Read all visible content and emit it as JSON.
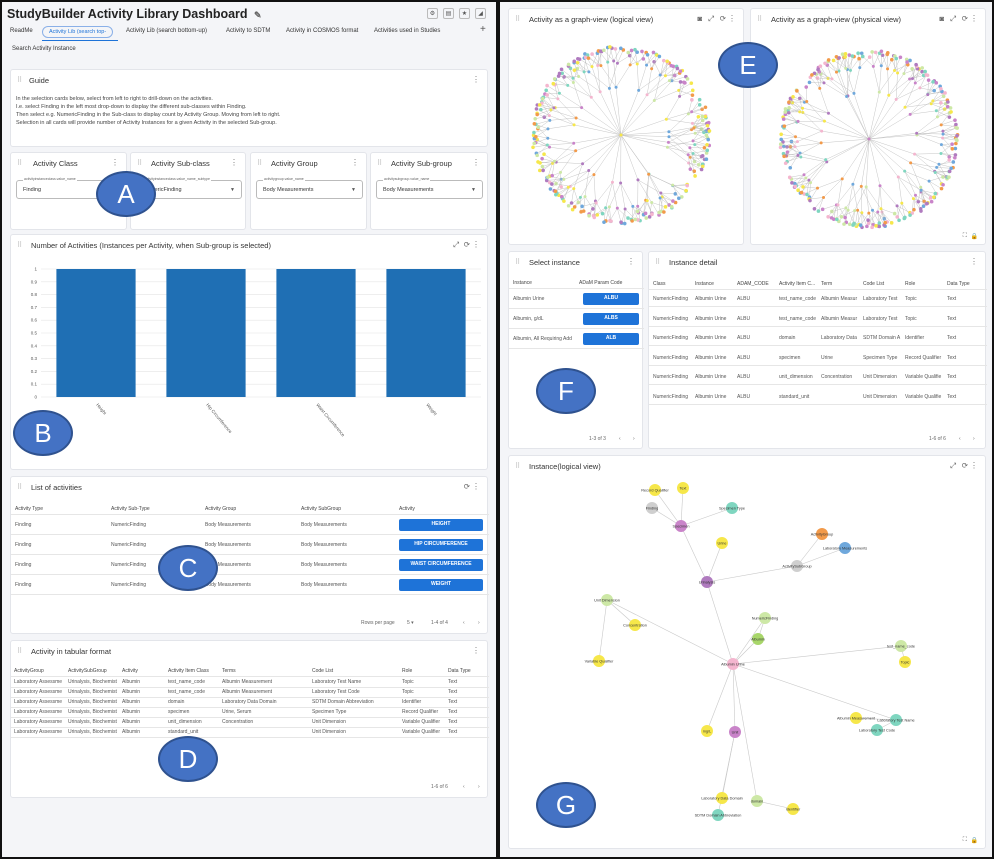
{
  "app": {
    "title": "StudyBuilder Activity Library Dashboard",
    "tabs": [
      "ReadMe",
      "Activity Lib (search top-",
      "Activity Lib (search bottom-up)",
      "Activity to SDTM",
      "Activity in COSMOS format",
      "Activities used in Studies"
    ],
    "tab2": "Search Activity Instance",
    "add_tab": "+"
  },
  "guide": {
    "title": "Guide",
    "lines": [
      "In the selection cards below, select from left to right to drill-down on the activities.",
      "I.e. select Finding in the left most drop-down to display the different sub-classes within Finding.",
      "Then select e.g. NumericFinding in the Sub-class to display count by Activity Group. Moving from left to right.",
      "Selection in all cards will provide number of Activity Instances for a given Activity in the selected Sub-group."
    ]
  },
  "filters": [
    {
      "title": "Activity Class",
      "field": "activityinstanceclass.value_name",
      "value": "Finding"
    },
    {
      "title": "Activity Sub-class",
      "field": "activityinstanceclass.value_name_subtype",
      "value": "NumericFinding"
    },
    {
      "title": "Activity Group",
      "field": "activitygroup.value_name",
      "value": "Body Measurements"
    },
    {
      "title": "Activity Sub-group",
      "field": "activitysubgroup.value_name",
      "value": "Body Measurements"
    }
  ],
  "bar_card": {
    "title": "Number of Activities (Instances per Activity, when Sub-group is selected)"
  },
  "chart_data": {
    "type": "bar",
    "categories": [
      "Height",
      "Hip Circumference",
      "Waist Circumference",
      "Weight"
    ],
    "values": [
      1,
      1,
      1,
      1
    ],
    "ylim": [
      0,
      1
    ],
    "yticks": [
      "0",
      "0.1",
      "0.2",
      "0.3",
      "0.4",
      "0.5",
      "0.6",
      "0.7",
      "0.8",
      "0.9",
      "1"
    ],
    "color": "#1f6fb4",
    "grid": true
  },
  "list_card": {
    "title": "List of activities",
    "headers": [
      "Activity Type",
      "Activity Sub-Type",
      "Activity Group",
      "Activity SubGroup",
      "Activity"
    ],
    "rows": [
      [
        "Finding",
        "NumericFinding",
        "Body Measurements",
        "Body Measurements",
        "HEIGHT"
      ],
      [
        "Finding",
        "NumericFinding",
        "Body Measurements",
        "Body Measurements",
        "HIP CIRCUMFERENCE"
      ],
      [
        "Finding",
        "NumericFinding",
        "Body Measurements",
        "Body Measurements",
        "WAIST CIRCUMFERENCE"
      ],
      [
        "Finding",
        "NumericFinding",
        "Body Measurements",
        "Body Measurements",
        "WEIGHT"
      ]
    ],
    "rows_per_page_label": "Rows per page",
    "rows_per_page": "5",
    "range": "1-4 of 4"
  },
  "tabular_card": {
    "title": "Activity in tabular format",
    "headers": [
      "ActivityGroup",
      "ActivitySubGroup",
      "Activity",
      "Activity Item Class",
      "Terms",
      "Code List",
      "Role",
      "Data Type"
    ],
    "rows": [
      [
        "Laboratory Assessme",
        "Urinalysis, Biochemist",
        "Albumin",
        "test_name_code",
        "Albumin Measurement",
        "Laboratory Test Name",
        "Topic",
        "Text"
      ],
      [
        "Laboratory Assessme",
        "Urinalysis, Biochemist",
        "Albumin",
        "test_name_code",
        "Albumin Measurement",
        "Laboratory Test Code",
        "Topic",
        "Text"
      ],
      [
        "Laboratory Assessme",
        "Urinalysis, Biochemist",
        "Albumin",
        "domain",
        "Laboratory Data Domain",
        "SDTM Domain Abbreviation",
        "Identifier",
        "Text"
      ],
      [
        "Laboratory Assessme",
        "Urinalysis, Biochemist",
        "Albumin",
        "specimen",
        "Urine, Serum",
        "Specimen Type",
        "Record Qualifier",
        "Text"
      ],
      [
        "Laboratory Assessme",
        "Urinalysis, Biochemist",
        "Albumin",
        "unit_dimension",
        "Concentration",
        "Unit Dimension",
        "Variable Qualifier",
        "Text"
      ],
      [
        "Laboratory Assessme",
        "Urinalysis, Biochemist",
        "Albumin",
        "standard_unit",
        "",
        "Unit Dimension",
        "Variable Qualifier",
        "Text"
      ]
    ],
    "range": "1-6 of 6"
  },
  "graph_logical": {
    "title": "Activity as a graph-view (logical view)"
  },
  "graph_physical": {
    "title": "Activity as a graph-view (physical view)"
  },
  "select_instance": {
    "title": "Select instance",
    "headers": [
      "Instance",
      "ADaM Param Code"
    ],
    "rows": [
      [
        "Albumin Urine",
        "ALBU"
      ],
      [
        "Albumin, g/dL",
        "ALBS"
      ],
      [
        "Albumin, All Requiring Add",
        "ALB"
      ]
    ],
    "range": "1-3 of 3"
  },
  "instance_detail": {
    "title": "Instance detail",
    "headers": [
      "Class",
      "Instance",
      "ADAM_CODE",
      "Activity Item C...",
      "Term",
      "Code List",
      "Role",
      "Data Type"
    ],
    "rows": [
      [
        "NumericFinding",
        "Albumin Urine",
        "ALBU",
        "test_name_code",
        "Albumin Measur",
        "Laboratory Test",
        "Topic",
        "Text"
      ],
      [
        "NumericFinding",
        "Albumin Urine",
        "ALBU",
        "test_name_code",
        "Albumin Measur",
        "Laboratory Test",
        "Topic",
        "Text"
      ],
      [
        "NumericFinding",
        "Albumin Urine",
        "ALBU",
        "domain",
        "Laboratory Data",
        "SDTM Domain A",
        "Identifier",
        "Text"
      ],
      [
        "NumericFinding",
        "Albumin Urine",
        "ALBU",
        "specimen",
        "Urine",
        "Specimen Type",
        "Record Qualifier",
        "Text"
      ],
      [
        "NumericFinding",
        "Albumin Urine",
        "ALBU",
        "unit_dimension",
        "Concentration",
        "Unit Dimension",
        "Variable Qualifie",
        "Text"
      ],
      [
        "NumericFinding",
        "Albumin Urine",
        "ALBU",
        "standard_unit",
        "",
        "Unit Dimension",
        "Variable Qualifie",
        "Text"
      ]
    ],
    "range": "1-6 of 6"
  },
  "instance_graph": {
    "title": "Instance(logical view)",
    "nodes": [
      {
        "label": "Albumin Urine",
        "color": "#f4b6cf"
      },
      {
        "label": "Text",
        "color": "#f6e74a"
      },
      {
        "label": "Record Qualifier",
        "color": "#f6e74a"
      },
      {
        "label": "Finding",
        "color": "#cfcfcf"
      },
      {
        "label": "Specimen",
        "color": "#c984c9"
      },
      {
        "label": "Specimen Type",
        "color": "#7fd6c0"
      },
      {
        "label": "Urine",
        "color": "#f6e74a"
      },
      {
        "label": "Urinalysis",
        "color": "#b07bbf"
      },
      {
        "label": "Laboratory Measurements",
        "color": "#6fa8dc"
      },
      {
        "label": "ActivityGroup",
        "color": "#f29a4a"
      },
      {
        "label": "ActivitySubGroup",
        "color": "#cfcfcf"
      },
      {
        "label": "NumericFinding",
        "color": "#cde8a6"
      },
      {
        "label": "Albumin",
        "color": "#a8d66a"
      },
      {
        "label": "Unit Dimension",
        "color": "#cde8a6"
      },
      {
        "label": "Concentration",
        "color": "#f6e74a"
      },
      {
        "label": "Variable Qualifier",
        "color": "#f6e74a"
      },
      {
        "label": "Unit",
        "color": "#c984c9"
      },
      {
        "label": "Laboratory Test Name",
        "color": "#7fd6c0"
      },
      {
        "label": "Laboratory Test Code",
        "color": "#7fd6c0"
      },
      {
        "label": "Albumin Measurement",
        "color": "#f6e74a"
      },
      {
        "label": "test_name_code",
        "color": "#cde8a6"
      },
      {
        "label": "Topic",
        "color": "#f6e74a"
      },
      {
        "label": "Laboratory Data Domain",
        "color": "#f6e74a"
      },
      {
        "label": "SDTM Domain Abbreviation",
        "color": "#7fd6c0"
      },
      {
        "label": "domain",
        "color": "#cde8a6"
      },
      {
        "label": "Identifier",
        "color": "#f6e74a"
      },
      {
        "label": "mg/L",
        "color": "#f6e74a"
      }
    ]
  },
  "callouts": [
    "A",
    "B",
    "C",
    "D",
    "E",
    "F",
    "G"
  ]
}
